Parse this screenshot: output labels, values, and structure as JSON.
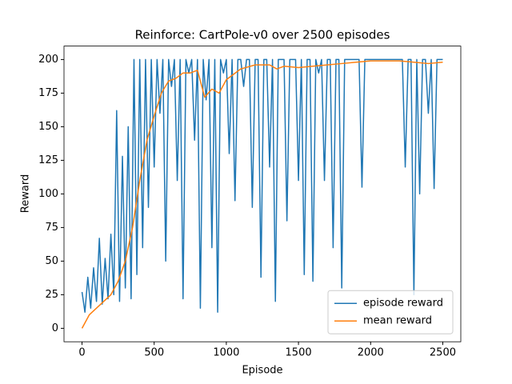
{
  "chart_data": {
    "type": "line",
    "title": "Reinforce: CartPole-v0 over 2500 episodes",
    "xlabel": "Episode",
    "ylabel": "Reward",
    "xlim": [
      -125,
      2625
    ],
    "ylim": [
      -10,
      210
    ],
    "xticks": [
      0,
      500,
      1000,
      1500,
      2000,
      2500
    ],
    "yticks": [
      0,
      25,
      50,
      75,
      100,
      125,
      150,
      175,
      200
    ],
    "legend": "lower right",
    "series": [
      {
        "name": "episode reward",
        "color": "#1f77b4",
        "x": [
          0,
          20,
          40,
          60,
          80,
          100,
          120,
          140,
          160,
          180,
          200,
          220,
          240,
          260,
          280,
          300,
          320,
          340,
          360,
          380,
          400,
          420,
          440,
          460,
          480,
          500,
          520,
          540,
          560,
          580,
          600,
          620,
          640,
          660,
          680,
          700,
          720,
          740,
          760,
          780,
          800,
          820,
          840,
          860,
          880,
          900,
          920,
          940,
          960,
          980,
          1000,
          1020,
          1040,
          1060,
          1080,
          1100,
          1120,
          1140,
          1160,
          1180,
          1200,
          1220,
          1240,
          1260,
          1280,
          1300,
          1320,
          1340,
          1360,
          1380,
          1400,
          1420,
          1440,
          1460,
          1480,
          1500,
          1520,
          1540,
          1560,
          1580,
          1600,
          1620,
          1640,
          1660,
          1680,
          1700,
          1720,
          1740,
          1760,
          1780,
          1800,
          1820,
          1840,
          1860,
          1880,
          1900,
          1920,
          1940,
          1960,
          1980,
          2000,
          2020,
          2040,
          2060,
          2080,
          2100,
          2120,
          2140,
          2160,
          2180,
          2200,
          2220,
          2240,
          2260,
          2280,
          2300,
          2320,
          2340,
          2360,
          2380,
          2400,
          2420,
          2440,
          2460,
          2480,
          2500
        ],
        "values": [
          27,
          12,
          38,
          15,
          45,
          20,
          67,
          18,
          52,
          22,
          70,
          25,
          162,
          20,
          128,
          30,
          150,
          22,
          200,
          40,
          200,
          60,
          200,
          90,
          200,
          120,
          200,
          160,
          200,
          50,
          200,
          180,
          200,
          110,
          200,
          22,
          200,
          190,
          200,
          140,
          200,
          15,
          200,
          170,
          200,
          60,
          200,
          12,
          200,
          190,
          200,
          130,
          200,
          95,
          200,
          200,
          180,
          200,
          200,
          90,
          200,
          200,
          38,
          200,
          200,
          120,
          200,
          20,
          200,
          200,
          200,
          80,
          200,
          200,
          200,
          110,
          200,
          40,
          200,
          200,
          35,
          200,
          190,
          200,
          110,
          200,
          200,
          60,
          200,
          200,
          30,
          200,
          200,
          200,
          200,
          200,
          200,
          105,
          200,
          200,
          200,
          200,
          200,
          200,
          200,
          200,
          200,
          200,
          200,
          200,
          200,
          200,
          120,
          200,
          200,
          25,
          200,
          100,
          200,
          200,
          160,
          200,
          104,
          200,
          200,
          200
        ]
      },
      {
        "name": "mean reward",
        "color": "#ff7f0e",
        "x": [
          0,
          50,
          100,
          150,
          200,
          250,
          300,
          350,
          400,
          450,
          500,
          550,
          600,
          650,
          700,
          750,
          800,
          850,
          900,
          950,
          1000,
          1100,
          1200,
          1300,
          1350,
          1400,
          1500,
          1600,
          1700,
          1800,
          1900,
          2000,
          2100,
          2200,
          2300,
          2400,
          2500
        ],
        "values": [
          0,
          10,
          15,
          20,
          25,
          35,
          50,
          75,
          110,
          140,
          158,
          175,
          184,
          186,
          190,
          190,
          192,
          172,
          178,
          175,
          185,
          193,
          196,
          196,
          193,
          195,
          194,
          195,
          196,
          197,
          198,
          199,
          199,
          199,
          198,
          197,
          198
        ]
      }
    ]
  }
}
